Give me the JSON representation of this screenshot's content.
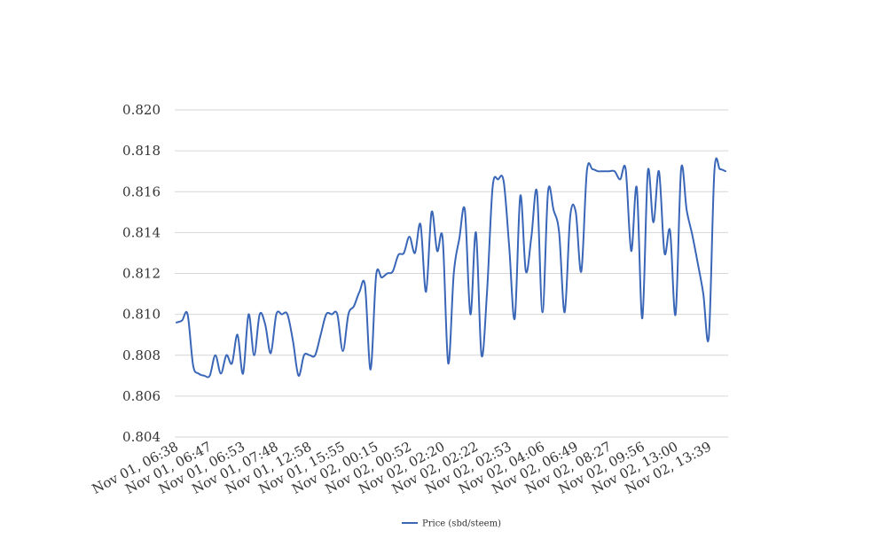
{
  "chart_data": {
    "type": "line",
    "title": "",
    "xlabel": "",
    "ylabel": "",
    "ylim": [
      0.804,
      0.82
    ],
    "grid": true,
    "legend_position": "bottom-center",
    "x_tick_labels": [
      "Nov 01, 06:38",
      "Nov 01, 06:47",
      "Nov 01, 06:53",
      "Nov 01, 07:48",
      "Nov 01, 12:58",
      "Nov 01, 15:55",
      "Nov 02, 00:15",
      "Nov 02, 00:52",
      "Nov 02, 02:20",
      "Nov 02, 02:22",
      "Nov 02, 02:53",
      "Nov 02, 04:06",
      "Nov 02, 06:49",
      "Nov 02, 08:27",
      "Nov 02, 09:56",
      "Nov 02, 13:00",
      "Nov 02, 13:39"
    ],
    "y_ticks": [
      "0.804",
      "0.806",
      "0.808",
      "0.810",
      "0.812",
      "0.814",
      "0.816",
      "0.818",
      "0.820"
    ],
    "series": [
      {
        "name": "Price (sbd/steem)",
        "color": "#3a66b8",
        "values": [
          0.8096,
          0.8097,
          0.81,
          0.8075,
          0.8071,
          0.807,
          0.807,
          0.808,
          0.8071,
          0.808,
          0.8076,
          0.809,
          0.8071,
          0.81,
          0.808,
          0.81,
          0.8095,
          0.8081,
          0.81,
          0.81,
          0.81,
          0.8087,
          0.807,
          0.808,
          0.808,
          0.808,
          0.809,
          0.81,
          0.81,
          0.81,
          0.8082,
          0.81,
          0.8104,
          0.8111,
          0.8114,
          0.8073,
          0.8119,
          0.8118,
          0.812,
          0.8121,
          0.8129,
          0.813,
          0.8138,
          0.813,
          0.8144,
          0.8111,
          0.815,
          0.8131,
          0.8137,
          0.8076,
          0.812,
          0.8137,
          0.8151,
          0.81,
          0.814,
          0.808,
          0.8111,
          0.8162,
          0.8166,
          0.8165,
          0.8133,
          0.8098,
          0.8158,
          0.8121,
          0.8138,
          0.816,
          0.8101,
          0.816,
          0.8151,
          0.814,
          0.8101,
          0.8148,
          0.815,
          0.8121,
          0.817,
          0.8171,
          0.817,
          0.817,
          0.817,
          0.817,
          0.8166,
          0.8171,
          0.8131,
          0.8162,
          0.8098,
          0.817,
          0.8145,
          0.817,
          0.813,
          0.8141,
          0.81,
          0.8171,
          0.8151,
          0.8139,
          0.8125,
          0.811,
          0.8089,
          0.817,
          0.8171,
          0.817
        ]
      }
    ]
  }
}
